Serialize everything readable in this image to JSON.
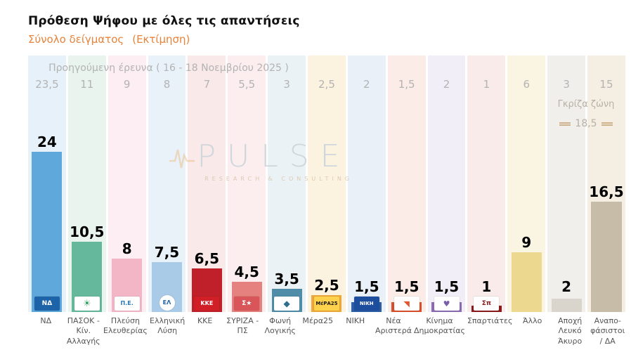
{
  "header": {
    "title": "Πρόθεση Ψήφου με όλες τις απαντήσεις",
    "subtitle": "Σύνολο δείγματος",
    "subtitle2": "(Εκτίμηση)"
  },
  "previous": {
    "label": "Προηγούμενη έρευνα ( 16 - 18 Νοεμβρίου 2025 )"
  },
  "gray_zone": {
    "label": "Γκρίζα ζώνη",
    "value": "18,5"
  },
  "watermark": {
    "name": "PULSE",
    "sub": "RESEARCH & CONSULTING"
  },
  "chart_data": {
    "type": "bar",
    "title": "Πρόθεση Ψήφου με όλες τις απαντήσεις",
    "subtitle": "Σύνολο δείγματος (Εκτίμηση)",
    "categories": [
      "ΝΔ",
      "ΠΑΣΟΚ - Κίν. Αλλαγής",
      "Πλεύση Ελευθερίας",
      "Ελληνική Λύση",
      "ΚΚΕ",
      "ΣΥΡΙΖΑ - ΠΣ",
      "Φωνή Λογικής",
      "Μέρα25",
      "ΝΙΚΗ",
      "Νέα Αριστερά",
      "Κίνημα Δημοκρατίας",
      "Σπαρτιάτες",
      "Άλλο",
      "Αποχή Λευκό Άκυρο",
      "Αναπο-φάσιστοι / ΔΑ"
    ],
    "series": [
      {
        "name": "Εκτίμηση (τρέχουσα)",
        "values": [
          24,
          10.5,
          8,
          7.5,
          6.5,
          4.5,
          3.5,
          2.5,
          1.5,
          1.5,
          1.5,
          1,
          9,
          2,
          16.5
        ]
      },
      {
        "name": "Προηγούμενη έρευνα ( 16 - 18 Νοεμβρίου 2025 )",
        "values": [
          23.5,
          11,
          9,
          8,
          7,
          5.5,
          3,
          2.5,
          2,
          1.5,
          2,
          1,
          6,
          3,
          15
        ]
      }
    ],
    "annotations": [
      {
        "label": "Γκρίζα ζώνη",
        "value": 18.5
      }
    ],
    "ylim": [
      0,
      26
    ],
    "grid": false,
    "legend_position": "none"
  },
  "parties": [
    {
      "label": "ΝΔ",
      "value": "24",
      "prev": "23,5",
      "barColor": "#5fa8dc",
      "tint": "#e7f1f9",
      "logo": {
        "name": "nd-logo",
        "text": "ΝΔ",
        "bg": "#1c63a8",
        "fg": "#ffffff"
      }
    },
    {
      "label": "ΠΑΣΟΚ - Κίν. Αλλαγής",
      "value": "10,5",
      "prev": "11",
      "barColor": "#66b89c",
      "tint": "#e9f4ef",
      "logo": {
        "name": "pasok-logo",
        "text": "☀",
        "bg": "#ffffff",
        "fg": "#2f9e5b",
        "size": 13
      }
    },
    {
      "label": "Πλεύση Ελευθερίας",
      "value": "8",
      "prev": "9",
      "barColor": "#f3b6c6",
      "tint": "#fceef3",
      "logo": {
        "name": "plefsi-eleftherias-logo",
        "text": "Π.Ε.",
        "bg": "#ffffff",
        "fg": "#2a7ab8",
        "size": 8
      }
    },
    {
      "label": "Ελληνική Λύση",
      "value": "7,5",
      "prev": "8",
      "barColor": "#a9cbe8",
      "tint": "#eaf2f9",
      "logo": {
        "name": "elliniki-lysi-logo",
        "text": "ΕΛ",
        "bg": "#ffffff",
        "fg": "#1c63a8",
        "shape": "circle",
        "size": 8
      }
    },
    {
      "label": "ΚΚΕ",
      "value": "6,5",
      "prev": "7",
      "barColor": "#c0202a",
      "tint": "#f9e9e9",
      "logo": {
        "name": "kke-logo",
        "text": "ΚΚΕ",
        "bg": "#d01f26",
        "fg": "#ffffff",
        "size": 8
      }
    },
    {
      "label": "ΣΥΡΙΖΑ - ΠΣ",
      "value": "4,5",
      "prev": "5,5",
      "barColor": "#e5817e",
      "tint": "#fceeee",
      "logo": {
        "name": "syriza-logo",
        "text": "Σ★",
        "bg": "#d85559",
        "fg": "#ffffff",
        "size": 9
      }
    },
    {
      "label": "Φωνή Λογικής",
      "value": "3,5",
      "prev": "3",
      "barColor": "#4f8ca8",
      "tint": "#ebf2f5",
      "logo": {
        "name": "foni-logikis-logo",
        "text": "◆",
        "bg": "#ffffff",
        "fg": "#2e6e8e",
        "size": 12
      }
    },
    {
      "label": "Μέρα25",
      "value": "2,5",
      "prev": "2,5",
      "barColor": "#eda93c",
      "tint": "#fbf3e0",
      "logo": {
        "name": "mera25-logo",
        "text": "ΜέΡΑ25",
        "bg": "#ffd24d",
        "fg": "#1a1a1a",
        "size": 7
      }
    },
    {
      "label": "ΝΙΚΗ",
      "value": "1,5",
      "prev": "2",
      "barColor": "#2d5fa6",
      "tint": "#eaf0f8",
      "logo": {
        "name": "niki-logo",
        "text": "ΝΙΚΗ",
        "bg": "#1d4e9e",
        "fg": "#ffffff",
        "size": 7
      }
    },
    {
      "label": "Νέα Αριστερά",
      "value": "1,5",
      "prev": "1,5",
      "barColor": "#d94f2b",
      "tint": "#fbece7",
      "logo": {
        "name": "nea-aristera-logo",
        "text": "◥",
        "bg": "#ffffff",
        "fg": "#e2552e",
        "size": 11
      }
    },
    {
      "label": "Κίνημα Δημοκρατίας",
      "value": "1,5",
      "prev": "2",
      "barColor": "#8b6bb1",
      "tint": "#f2eef7",
      "logo": {
        "name": "kinima-dimokratias-logo",
        "text": "♥",
        "bg": "#ffffff",
        "fg": "#7b5ea7",
        "size": 11
      }
    },
    {
      "label": "Σπαρτιάτες",
      "value": "1",
      "prev": "1",
      "barColor": "#8b1a1a",
      "tint": "#f8ebe9",
      "logo": {
        "name": "spartiates-logo",
        "text": "Σπ",
        "bg": "#ffffff",
        "fg": "#8b1a1a",
        "size": 9
      }
    },
    {
      "label": "Άλλο",
      "value": "9",
      "prev": "6",
      "barColor": "#ecd98f",
      "tint": "#faf4e2",
      "logo": null
    },
    {
      "label": "Αποχή Λευκό Άκυρο",
      "value": "2",
      "prev": "3",
      "barColor": "#d9d5cd",
      "tint": "#f1efec",
      "logo": null
    },
    {
      "label": "Αναπο-φάσιστοι / ΔΑ",
      "value": "16,5",
      "prev": "15",
      "barColor": "#c7bca8",
      "tint": "#f5efe3",
      "logo": null
    }
  ]
}
